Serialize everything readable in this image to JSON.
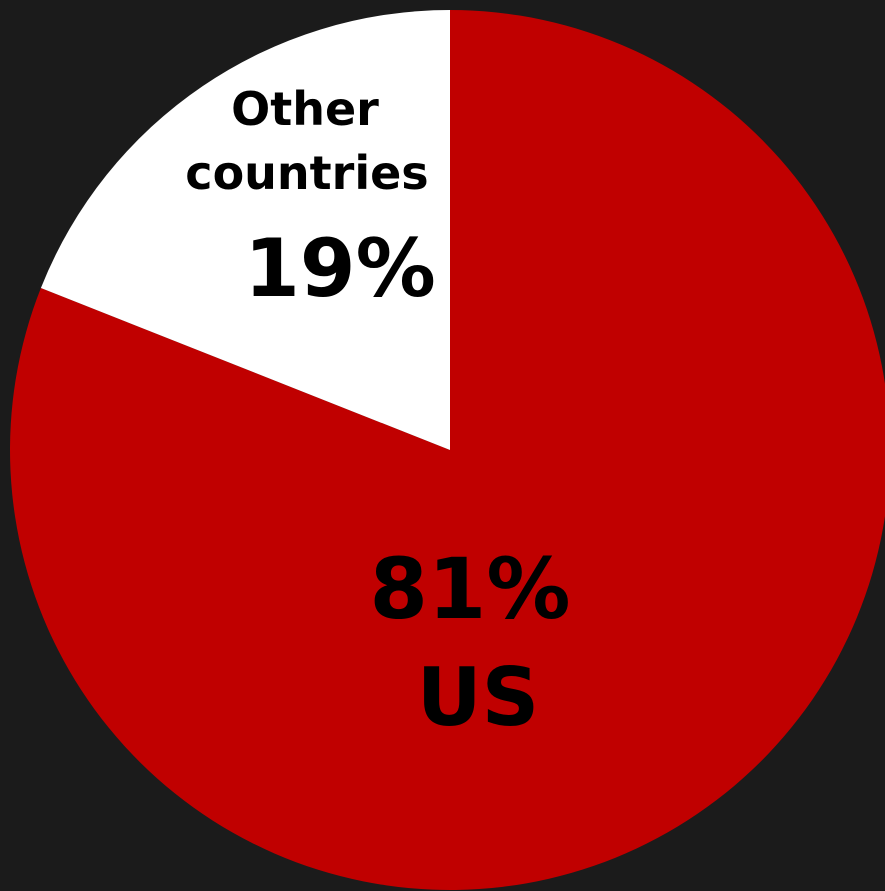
{
  "chart_data": {
    "type": "pie",
    "slices": [
      {
        "label": "US",
        "value": 81,
        "value_label": "81%",
        "color": "#c00000"
      },
      {
        "label": "Other countries",
        "label_lines": [
          "Other",
          "countries"
        ],
        "value": 19,
        "value_label": "19%",
        "color": "#ffffff"
      }
    ],
    "background": "#1b1b1b",
    "start_angle": "top, clockwise",
    "legend": "none"
  }
}
